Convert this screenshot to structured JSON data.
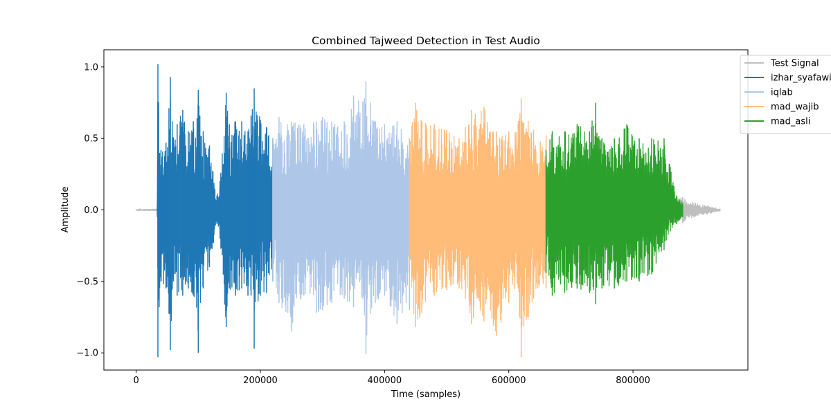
{
  "chart_data": {
    "type": "line",
    "title": "Combined Tajweed Detection in Test Audio",
    "xlabel": "Time (samples)",
    "ylabel": "Amplitude",
    "xlim": [
      -52000,
      985000
    ],
    "ylim": [
      -1.12,
      1.12
    ],
    "x_ticks": [
      0,
      200000,
      400000,
      600000,
      800000
    ],
    "x_tick_labels": [
      "0",
      "200000",
      "400000",
      "600000",
      "800000"
    ],
    "y_ticks": [
      -1.0,
      -0.5,
      0.0,
      0.5,
      1.0
    ],
    "y_tick_labels": [
      "−1.0",
      "−0.5",
      "0.0",
      "0.5",
      "1.0"
    ],
    "grid": false,
    "legend_position": "top-right",
    "series": [
      {
        "name": "Test Signal",
        "color": "#bfbfbf",
        "x": [
          0,
          34000,
          880000,
          900000,
          920000,
          940000
        ],
        "upper": [
          0.005,
          0.01,
          0.09,
          0.05,
          0.03,
          0.01
        ],
        "lower": [
          -0.005,
          -0.01,
          -0.09,
          -0.05,
          -0.03,
          -0.01
        ]
      },
      {
        "name": "izhar_syafawi",
        "color": "#1f77b4",
        "x": [
          34000,
          35000,
          40000,
          48000,
          55000,
          60000,
          66000,
          75000,
          84000,
          92000,
          100000,
          108000,
          118000,
          130000,
          135000,
          145000,
          150000,
          160000,
          170000,
          180000,
          185000,
          190000,
          200000,
          210000,
          220000
        ],
        "upper": [
          0.05,
          1.02,
          0.42,
          0.47,
          0.93,
          0.5,
          0.6,
          0.7,
          0.55,
          0.62,
          0.84,
          0.55,
          0.45,
          0.1,
          0.2,
          0.82,
          0.6,
          0.62,
          0.62,
          0.55,
          0.66,
          0.85,
          0.63,
          0.58,
          0.5
        ],
        "lower": [
          -0.05,
          -1.03,
          -0.5,
          -0.55,
          -0.98,
          -0.5,
          -0.6,
          -0.6,
          -0.55,
          -0.6,
          -1.0,
          -0.55,
          -0.4,
          -0.1,
          -0.2,
          -0.82,
          -0.55,
          -0.6,
          -0.55,
          -0.6,
          -0.6,
          -0.97,
          -0.6,
          -0.58,
          -0.5
        ]
      },
      {
        "name": "iqlab",
        "color": "#aec7e8",
        "x": [
          220000,
          230000,
          250000,
          270000,
          290000,
          300000,
          315000,
          335000,
          350000,
          365000,
          370000,
          385000,
          400000,
          420000,
          440000
        ],
        "upper": [
          0.5,
          0.65,
          0.62,
          0.6,
          0.62,
          0.65,
          0.62,
          0.62,
          0.8,
          0.76,
          0.9,
          0.62,
          0.6,
          0.62,
          0.5
        ],
        "lower": [
          -0.5,
          -0.65,
          -0.85,
          -0.6,
          -0.72,
          -0.7,
          -0.65,
          -0.62,
          -0.68,
          -0.62,
          -1.01,
          -0.65,
          -0.6,
          -0.8,
          -0.7
        ]
      },
      {
        "name": "mad_wajib",
        "color": "#ffbb78",
        "x": [
          440000,
          450000,
          460000,
          480000,
          500000,
          520000,
          530000,
          540000,
          560000,
          580000,
          600000,
          615000,
          620000,
          640000,
          660000
        ],
        "upper": [
          0.5,
          0.75,
          0.62,
          0.6,
          0.56,
          0.5,
          0.58,
          0.7,
          0.72,
          0.55,
          0.55,
          0.6,
          0.78,
          0.56,
          0.52
        ],
        "lower": [
          -0.55,
          -0.82,
          -0.72,
          -0.6,
          -0.56,
          -0.55,
          -0.62,
          -0.8,
          -0.78,
          -0.88,
          -0.65,
          -0.55,
          -1.03,
          -0.62,
          -0.55
        ]
      },
      {
        "name": "mad_asli",
        "color": "#2ca02c",
        "x": [
          660000,
          670000,
          690000,
          710000,
          730000,
          740000,
          750000,
          770000,
          790000,
          810000,
          830000,
          850000,
          860000,
          870000,
          880000
        ],
        "upper": [
          0.42,
          0.55,
          0.55,
          0.6,
          0.55,
          0.75,
          0.5,
          0.5,
          0.6,
          0.5,
          0.5,
          0.5,
          0.3,
          0.1,
          0.05
        ],
        "lower": [
          -0.44,
          -0.6,
          -0.58,
          -0.55,
          -0.58,
          -0.66,
          -0.55,
          -0.55,
          -0.5,
          -0.5,
          -0.45,
          -0.28,
          -0.15,
          -0.1,
          -0.05
        ]
      }
    ]
  }
}
